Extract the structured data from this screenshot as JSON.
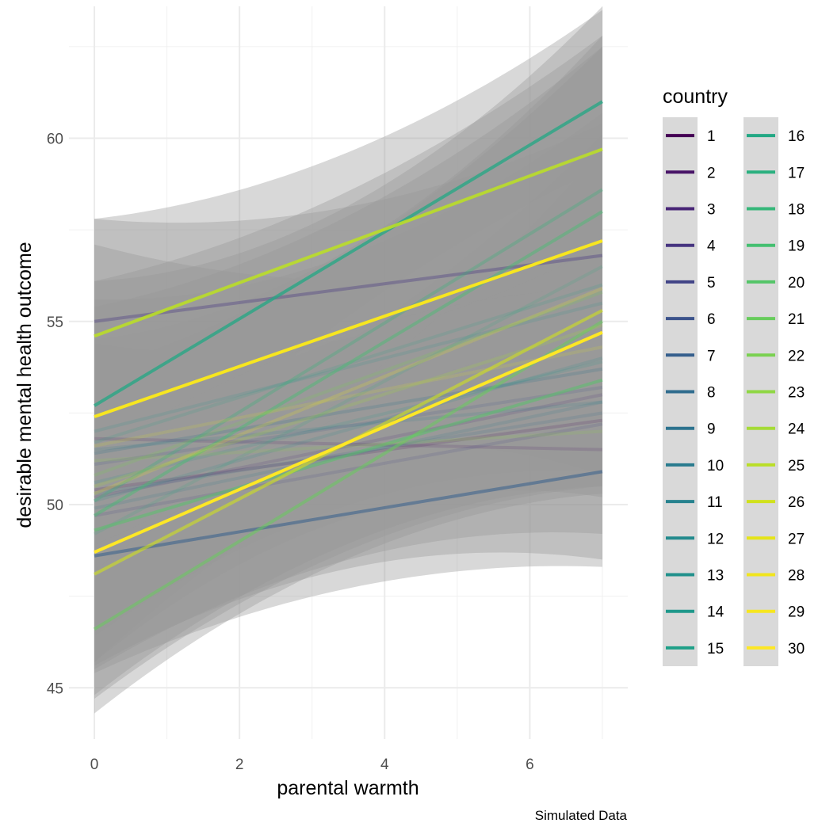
{
  "chart_data": {
    "type": "line",
    "xlabel": "parental warmth",
    "ylabel": "desirable mental health outcome",
    "caption": "Simulated Data",
    "legend_title": "country",
    "legend_position": "right",
    "xlim": [
      -0.35,
      7.35
    ],
    "ylim": [
      43.6,
      63.6
    ],
    "x_ticks": [
      0,
      2,
      4,
      6
    ],
    "y_ticks": [
      45,
      50,
      55,
      60
    ],
    "grid": true,
    "confidence_bands": true,
    "x_range": [
      0,
      7
    ],
    "series": [
      {
        "name": "1",
        "color": "#440154",
        "y0": 50.4,
        "y1": 52.3,
        "alpha": 0.15
      },
      {
        "name": "2",
        "color": "#481467",
        "y0": 51.8,
        "y1": 51.5,
        "alpha": 0.15
      },
      {
        "name": "3",
        "color": "#482576",
        "y0": 50.2,
        "y1": 53.0,
        "alpha": 0.15
      },
      {
        "name": "4",
        "color": "#463480",
        "y0": 55.0,
        "y1": 56.8,
        "alpha": 0.35
      },
      {
        "name": "5",
        "color": "#414487",
        "y0": 49.7,
        "y1": 52.2,
        "alpha": 0.15
      },
      {
        "name": "6",
        "color": "#3b528b",
        "y0": 51.1,
        "y1": 53.2,
        "alpha": 0.15
      },
      {
        "name": "7",
        "color": "#355f8d",
        "y0": 48.6,
        "y1": 50.9,
        "alpha": 0.55
      },
      {
        "name": "8",
        "color": "#2f6c8e",
        "y0": 50.3,
        "y1": 52.5,
        "alpha": 0.15
      },
      {
        "name": "9",
        "color": "#2c728e",
        "y0": 51.4,
        "y1": 53.7,
        "alpha": 0.2
      },
      {
        "name": "10",
        "color": "#297b8e",
        "y0": 49.9,
        "y1": 52.8,
        "alpha": 0.15
      },
      {
        "name": "11",
        "color": "#26828e",
        "y0": 51.5,
        "y1": 52.8,
        "alpha": 0.15
      },
      {
        "name": "12",
        "color": "#238a8d",
        "y0": 50.1,
        "y1": 54.0,
        "alpha": 0.15
      },
      {
        "name": "13",
        "color": "#21918c",
        "y0": 52.0,
        "y1": 55.5,
        "alpha": 0.15
      },
      {
        "name": "14",
        "color": "#1f988b",
        "y0": 50.6,
        "y1": 53.9,
        "alpha": 0.15
      },
      {
        "name": "15",
        "color": "#1fa088",
        "y0": 51.7,
        "y1": 56.0,
        "alpha": 0.15
      },
      {
        "name": "16",
        "color": "#22a884",
        "y0": 52.7,
        "y1": 61.0,
        "alpha": 0.75
      },
      {
        "name": "17",
        "color": "#2ab07f",
        "y0": 49.2,
        "y1": 56.5,
        "alpha": 0.15
      },
      {
        "name": "18",
        "color": "#35b779",
        "y0": 50.1,
        "y1": 58.6,
        "alpha": 0.3
      },
      {
        "name": "19",
        "color": "#44bf70",
        "y0": 49.7,
        "y1": 58.0,
        "alpha": 0.45
      },
      {
        "name": "20",
        "color": "#54c568",
        "y0": 49.3,
        "y1": 53.4,
        "alpha": 0.5
      },
      {
        "name": "21",
        "color": "#67cc5c",
        "y0": 46.6,
        "y1": 55.0,
        "alpha": 0.55
      },
      {
        "name": "22",
        "color": "#7ad151",
        "y0": 50.8,
        "y1": 55.8,
        "alpha": 0.2
      },
      {
        "name": "23",
        "color": "#8fd744",
        "y0": 51.2,
        "y1": 52.0,
        "alpha": 0.15
      },
      {
        "name": "24",
        "color": "#a5db36",
        "y0": 50.5,
        "y1": 54.9,
        "alpha": 0.2
      },
      {
        "name": "25",
        "color": "#bade28",
        "y0": 54.6,
        "y1": 59.7,
        "alpha": 0.9
      },
      {
        "name": "26",
        "color": "#d0e11c",
        "y0": 48.1,
        "y1": 55.3,
        "alpha": 0.6
      },
      {
        "name": "27",
        "color": "#e5e419",
        "y0": 51.6,
        "y1": 54.3,
        "alpha": 0.15
      },
      {
        "name": "28",
        "color": "#f1e51d",
        "y0": 50.3,
        "y1": 55.9,
        "alpha": 0.2
      },
      {
        "name": "29",
        "color": "#f7e61f",
        "y0": 52.4,
        "y1": 57.2,
        "alpha": 1.0
      },
      {
        "name": "30",
        "color": "#fde725",
        "y0": 48.7,
        "y1": 54.7,
        "alpha": 1.0
      }
    ],
    "bands": [
      {
        "y0": 53.8,
        "y1": 54.6,
        "se0": 3.3,
        "se1": 2.3
      },
      {
        "y0": 52.4,
        "y1": 57.2,
        "se0": 3.7,
        "se1": 6.4
      },
      {
        "y0": 55.0,
        "y1": 56.8,
        "se0": 2.8,
        "se1": 3.6
      },
      {
        "y0": 51.0,
        "y1": 55.8,
        "se0": 4.6,
        "se1": 4.9
      },
      {
        "y0": 50.1,
        "y1": 56.5,
        "se0": 4.4,
        "se1": 6.3
      },
      {
        "y0": 52.7,
        "y1": 61.0,
        "se0": 3.4,
        "se1": 1.8
      },
      {
        "y0": 49.7,
        "y1": 58.0,
        "se0": 4.0,
        "se1": 4.5
      },
      {
        "y0": 49.3,
        "y1": 53.4,
        "se0": 3.8,
        "se1": 4.2
      },
      {
        "y0": 48.6,
        "y1": 50.9,
        "se0": 3.2,
        "se1": 2.6
      },
      {
        "y0": 48.1,
        "y1": 55.3,
        "se0": 3.3,
        "se1": 4.8
      },
      {
        "y0": 48.7,
        "y1": 54.7,
        "se0": 4.0,
        "se1": 4.2
      },
      {
        "y0": 50.0,
        "y1": 52.8,
        "se0": 4.4,
        "se1": 4.3
      },
      {
        "y0": 46.6,
        "y1": 55.0,
        "se0": 2.3,
        "se1": 4.7
      },
      {
        "y0": 51.8,
        "y1": 58.6,
        "se0": 3.6,
        "se1": 3.9
      },
      {
        "y0": 54.6,
        "y1": 59.7,
        "se0": 3.2,
        "se1": 3.8
      }
    ]
  }
}
